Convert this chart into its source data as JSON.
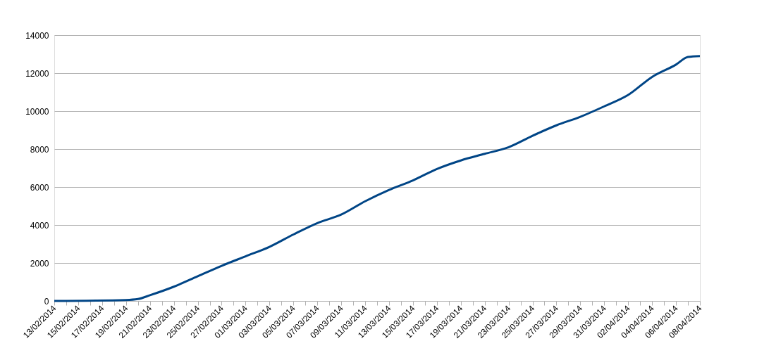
{
  "chart_data": {
    "type": "line",
    "x": [
      "2014-02-13",
      "2014-02-19",
      "2014-02-20",
      "2014-02-21",
      "2014-02-23",
      "2014-02-25",
      "2014-02-27",
      "2014-03-01",
      "2014-03-03",
      "2014-03-05",
      "2014-03-07",
      "2014-03-09",
      "2014-03-11",
      "2014-03-13",
      "2014-03-15",
      "2014-03-17",
      "2014-03-19",
      "2014-03-21",
      "2014-03-23",
      "2014-03-25",
      "2014-03-27",
      "2014-03-29",
      "2014-03-31",
      "2014-04-02",
      "2014-04-04",
      "2014-04-06",
      "2014-04-07",
      "2014-04-08"
    ],
    "series": [
      {
        "color": "#004586",
        "values": [
          0,
          50,
          100,
          300,
          750,
          1300,
          1850,
          2350,
          2850,
          3500,
          4100,
          4550,
          5250,
          5850,
          6350,
          6950,
          7400,
          7750,
          8100,
          8700,
          9250,
          9700,
          10250,
          10850,
          11800,
          12450,
          12850,
          12900
        ]
      }
    ],
    "xlim": [
      "2014-02-13",
      "2014-04-08"
    ],
    "xticks": [
      {
        "value": "2014-02-13",
        "label": "13/02/2014"
      },
      {
        "value": "2014-02-14",
        "label": null
      },
      {
        "value": "2014-02-15",
        "label": "15/02/2014"
      },
      {
        "value": "2014-02-16",
        "label": null
      },
      {
        "value": "2014-02-17",
        "label": "17/02/2014"
      },
      {
        "value": "2014-02-18",
        "label": null
      },
      {
        "value": "2014-02-19",
        "label": "19/02/2014"
      },
      {
        "value": "2014-02-20",
        "label": null
      },
      {
        "value": "2014-02-21",
        "label": "21/02/2014"
      },
      {
        "value": "2014-02-22",
        "label": null
      },
      {
        "value": "2014-02-23",
        "label": "23/02/2014"
      },
      {
        "value": "2014-02-24",
        "label": null
      },
      {
        "value": "2014-02-25",
        "label": "25/02/2014"
      },
      {
        "value": "2014-02-26",
        "label": null
      },
      {
        "value": "2014-02-27",
        "label": "27/02/2014"
      },
      {
        "value": "2014-02-28",
        "label": null
      },
      {
        "value": "2014-03-01",
        "label": "01/03/2014"
      },
      {
        "value": "2014-03-02",
        "label": null
      },
      {
        "value": "2014-03-03",
        "label": "03/03/2014"
      },
      {
        "value": "2014-03-04",
        "label": null
      },
      {
        "value": "2014-03-05",
        "label": "05/03/2014"
      },
      {
        "value": "2014-03-06",
        "label": null
      },
      {
        "value": "2014-03-07",
        "label": "07/03/2014"
      },
      {
        "value": "2014-03-08",
        "label": null
      },
      {
        "value": "2014-03-09",
        "label": "09/03/2014"
      },
      {
        "value": "2014-03-10",
        "label": null
      },
      {
        "value": "2014-03-11",
        "label": "11/03/2014"
      },
      {
        "value": "2014-03-12",
        "label": null
      },
      {
        "value": "2014-03-13",
        "label": "13/03/2014"
      },
      {
        "value": "2014-03-14",
        "label": null
      },
      {
        "value": "2014-03-15",
        "label": "15/03/2014"
      },
      {
        "value": "2014-03-16",
        "label": null
      },
      {
        "value": "2014-03-17",
        "label": "17/03/2014"
      },
      {
        "value": "2014-03-18",
        "label": null
      },
      {
        "value": "2014-03-19",
        "label": "19/03/2014"
      },
      {
        "value": "2014-03-20",
        "label": null
      },
      {
        "value": "2014-03-21",
        "label": "21/03/2014"
      },
      {
        "value": "2014-03-22",
        "label": null
      },
      {
        "value": "2014-03-23",
        "label": "23/03/2014"
      },
      {
        "value": "2014-03-24",
        "label": null
      },
      {
        "value": "2014-03-25",
        "label": "25/03/2014"
      },
      {
        "value": "2014-03-26",
        "label": null
      },
      {
        "value": "2014-03-27",
        "label": "27/03/2014"
      },
      {
        "value": "2014-03-28",
        "label": null
      },
      {
        "value": "2014-03-29",
        "label": "29/03/2014"
      },
      {
        "value": "2014-03-30",
        "label": null
      },
      {
        "value": "2014-03-31",
        "label": "31/03/2014"
      },
      {
        "value": "2014-04-01",
        "label": null
      },
      {
        "value": "2014-04-02",
        "label": "02/04/2014"
      },
      {
        "value": "2014-04-03",
        "label": null
      },
      {
        "value": "2014-04-04",
        "label": "04/04/2014"
      },
      {
        "value": "2014-04-05",
        "label": null
      },
      {
        "value": "2014-04-06",
        "label": "06/04/2014"
      },
      {
        "value": "2014-04-07",
        "label": null
      },
      {
        "value": "2014-04-08",
        "label": "08/04/2014"
      }
    ],
    "ylim": [
      0,
      14000
    ],
    "yticks": [
      0,
      2000,
      4000,
      6000,
      8000,
      10000,
      12000,
      14000
    ],
    "grid": "y",
    "line_style": "solid"
  }
}
